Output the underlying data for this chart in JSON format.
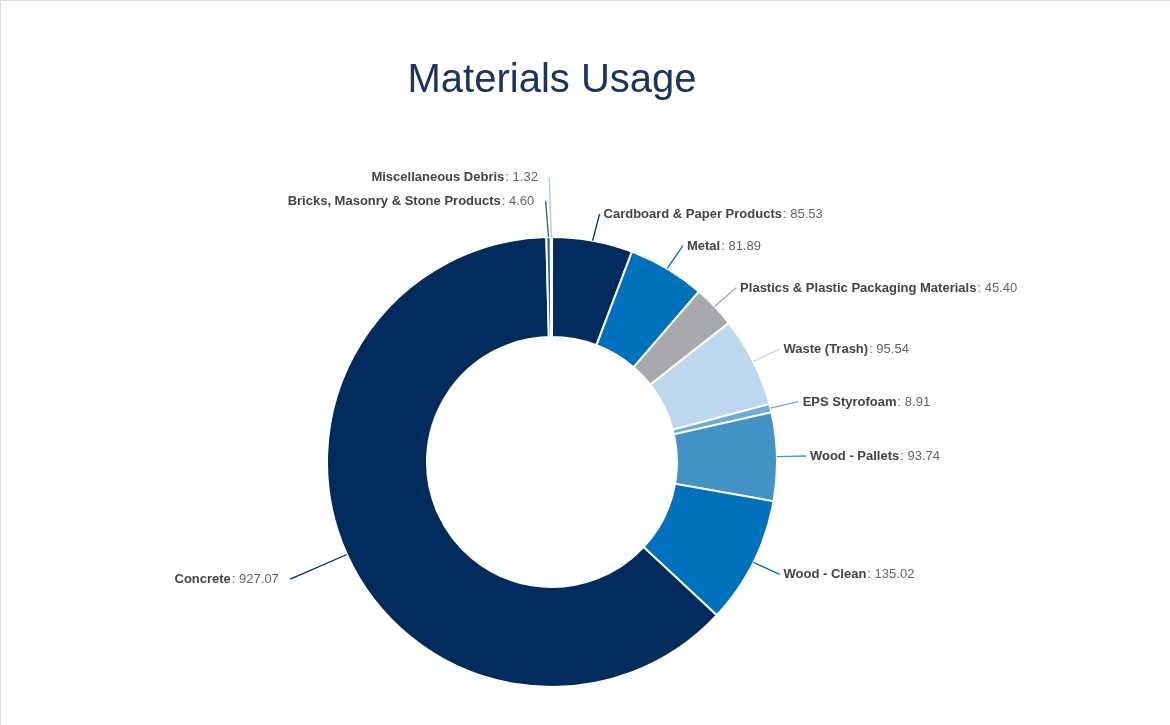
{
  "chart_data": {
    "type": "donut",
    "title": "Materials Usage",
    "categories": [
      "Cardboard & Paper Products",
      "Metal",
      "Plastics & Plastic Packaging Materials",
      "Waste (Trash)",
      "EPS Styrofoam",
      "Wood - Pallets",
      "Wood - Clean",
      "Concrete",
      "Bricks, Masonry & Stone Products",
      "Miscellaneous Debris"
    ],
    "values": [
      85.53,
      81.89,
      45.4,
      95.54,
      8.91,
      93.74,
      135.02,
      927.07,
      4.6,
      1.32
    ],
    "value_labels": [
      ": 85.53",
      ": 81.89",
      ": 45.40",
      ": 95.54",
      ": 8.91",
      ": 93.74",
      ": 135.02",
      ": 927.07",
      ": 4.60",
      ": 1.32"
    ],
    "colors": [
      "#002b5c",
      "#0071bc",
      "#a7a9ac",
      "#bdd7ee",
      "#6baed6",
      "#4292c6",
      "#0071bc",
      "#002b5c",
      "#2b5c8a",
      "#9ecae1"
    ]
  }
}
